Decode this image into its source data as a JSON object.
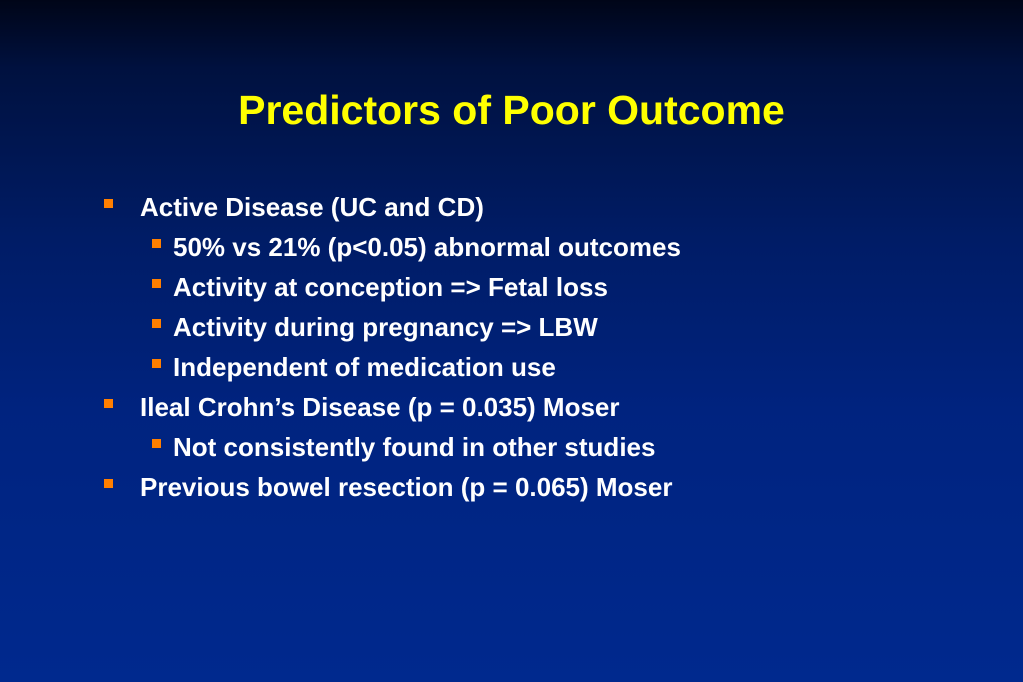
{
  "theme": {
    "title_color": "#ffff00",
    "text_color": "#ffffff",
    "bullet_color": "#ff7f00"
  },
  "slide": {
    "title": "Predictors of Poor Outcome",
    "items": [
      {
        "level": 1,
        "text": "Active Disease (UC and CD)"
      },
      {
        "level": 2,
        "text": "50% vs 21% (p<0.05) abnormal outcomes"
      },
      {
        "level": 2,
        "text": "Activity at conception => Fetal loss"
      },
      {
        "level": 2,
        "text": "Activity during pregnancy => LBW"
      },
      {
        "level": 2,
        "text": "Independent of medication use"
      },
      {
        "level": 1,
        "text": "Ileal Crohn’s Disease (p = 0.035) Moser"
      },
      {
        "level": 2,
        "text": "Not consistently found in other studies"
      },
      {
        "level": 1,
        "text": "Previous bowel resection (p = 0.065) Moser"
      }
    ]
  }
}
